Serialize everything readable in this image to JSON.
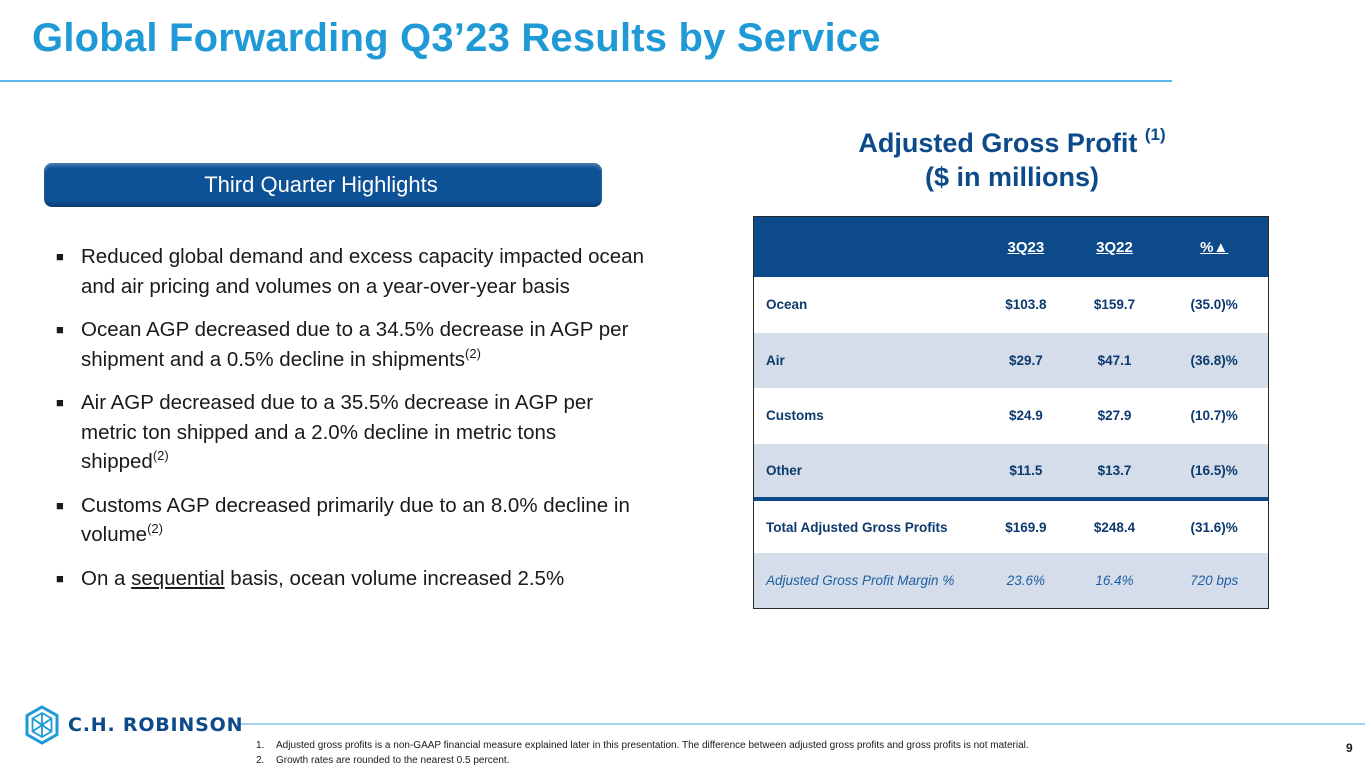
{
  "slide": {
    "title": "Global Forwarding Q3’23 Results by Service",
    "page_number": "9"
  },
  "highlights": {
    "banner": "Third Quarter Highlights",
    "bullet_mark": "■",
    "items": [
      {
        "text": "Reduced global demand and excess capacity impacted ocean and air pricing and volumes on a year-over-year basis"
      },
      {
        "text": "Ocean AGP decreased due to a 34.5% decrease in AGP per shipment and a 0.5% decline in shipments",
        "sup": "(2)"
      },
      {
        "text": "Air AGP decreased due to a 35.5% decrease in AGP per metric ton shipped and a 2.0% decline in metric tons shipped",
        "sup": "(2)"
      },
      {
        "text": "Customs AGP decreased primarily due to an 8.0% decline in volume",
        "sup": "(2)"
      },
      {
        "pre": "On a ",
        "underlined": "sequential",
        "post": " basis, ocean volume increased 2.5%"
      }
    ]
  },
  "agp": {
    "title_line1": "Adjusted Gross Profit",
    "title_sup": "(1)",
    "title_line2": "($ in millions)",
    "columns": [
      "3Q23",
      "3Q22",
      "%▲"
    ],
    "rows": [
      {
        "label": "Ocean",
        "q3_23": "$103.8",
        "q3_22": "$159.7",
        "change": "(35.0)%"
      },
      {
        "label": "Air",
        "q3_23": "$29.7",
        "q3_22": "$47.1",
        "change": "(36.8)%"
      },
      {
        "label": "Customs",
        "q3_23": "$24.9",
        "q3_22": "$27.9",
        "change": "(10.7)%"
      },
      {
        "label": "Other",
        "q3_23": "$11.5",
        "q3_22": "$13.7",
        "change": "(16.5)%"
      }
    ],
    "total": {
      "label": "Total Adjusted Gross Profits",
      "q3_23": "$169.9",
      "q3_22": "$248.4",
      "change": "(31.6)%"
    },
    "margin": {
      "label": "Adjusted Gross Profit Margin %",
      "q3_23": "23.6%",
      "q3_22": "16.4%",
      "change": "720 bps"
    }
  },
  "footer": {
    "logo_text": "C.H. ROBINSON",
    "footnotes": [
      {
        "num": "1.",
        "text": "Adjusted gross profits is a non-GAAP financial measure explained later in this presentation. The difference between adjusted gross profits and gross profits is not material."
      },
      {
        "num": "2.",
        "text": "Growth rates are rounded to the nearest 0.5 percent."
      }
    ]
  },
  "colors": {
    "title": "#1f9ad6",
    "navy": "#0d4a8a",
    "row_alt": "#d4dde9"
  }
}
